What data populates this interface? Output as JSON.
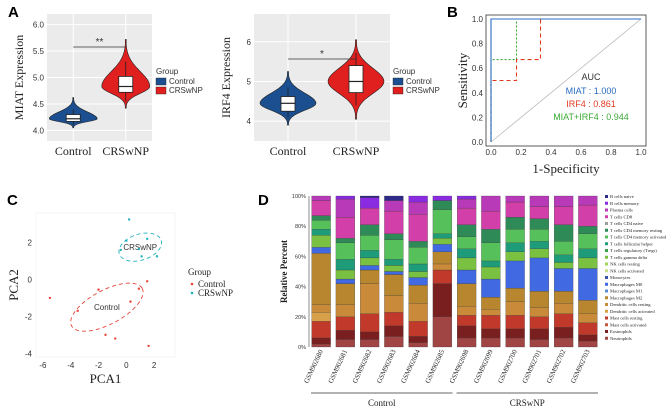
{
  "panels": {
    "a": "A",
    "b": "B",
    "c": "C",
    "d": "D"
  },
  "chart_data": [
    {
      "id": "A1",
      "type": "violin",
      "ylabel": "MIAT Expression",
      "categories": [
        "Control",
        "CRSwNP"
      ],
      "ylim": [
        3.8,
        6.2
      ],
      "yticks": [
        "4.0",
        "4.5",
        "5.0",
        "5.5",
        "6.0"
      ],
      "significance": "**",
      "box": [
        {
          "group": "Control",
          "q1": 4.17,
          "median": 4.22,
          "q3": 4.3,
          "whisker_low": 4.1,
          "whisker_high": 4.4,
          "min": 4.05,
          "max": 4.62
        },
        {
          "group": "CRSwNP",
          "q1": 4.72,
          "median": 4.83,
          "q3": 5.02,
          "whisker_low": 4.55,
          "whisker_high": 5.3,
          "min": 4.42,
          "max": 5.72
        }
      ],
      "legend": {
        "title": "Group",
        "items": [
          {
            "label": "Control",
            "color": "#1c4f8f"
          },
          {
            "label": "CRSwNP",
            "color": "#e01f1f"
          }
        ]
      }
    },
    {
      "id": "A2",
      "type": "violin",
      "ylabel": "IRF4 Expression",
      "categories": [
        "Control",
        "CRSwNP"
      ],
      "ylim": [
        3.5,
        6.7
      ],
      "yticks": [
        "4",
        "5",
        "6"
      ],
      "significance": "*",
      "box": [
        {
          "group": "Control",
          "q1": 4.25,
          "median": 4.45,
          "q3": 4.62,
          "whisker_low": 4.1,
          "whisker_high": 4.85,
          "min": 3.9,
          "max": 5.25
        },
        {
          "group": "CRSwNP",
          "q1": 4.72,
          "median": 5.0,
          "q3": 5.4,
          "whisker_low": 4.4,
          "whisker_high": 5.72,
          "min": 4.05,
          "max": 6.05
        }
      ],
      "legend": {
        "title": "Group",
        "items": [
          {
            "label": "Control",
            "color": "#1c4f8f"
          },
          {
            "label": "CRSwNP",
            "color": "#e01f1f"
          }
        ]
      }
    },
    {
      "id": "B",
      "type": "line",
      "xlabel": "1-Specificity",
      "ylabel": "Sensitivity",
      "xlim": [
        0,
        1
      ],
      "ylim": [
        0,
        1
      ],
      "ticks": [
        "0.0",
        "0.2",
        "0.4",
        "0.6",
        "0.8",
        "1.0"
      ],
      "series": [
        {
          "name": "MIAT",
          "color": "#2a6cc0",
          "dash": "",
          "points": [
            [
              0,
              0
            ],
            [
              0,
              1
            ],
            [
              1,
              1
            ]
          ]
        },
        {
          "name": "IRF4",
          "color": "#e03a1f",
          "dash": "4,3",
          "points": [
            [
              0,
              0
            ],
            [
              0,
              0.5
            ],
            [
              0.17,
              0.5
            ],
            [
              0.17,
              0.67
            ],
            [
              0.33,
              0.67
            ],
            [
              0.33,
              1
            ],
            [
              1,
              1
            ]
          ]
        },
        {
          "name": "MIAT+IRF4",
          "color": "#3aaa35",
          "dash": "2,2",
          "points": [
            [
              0,
              0
            ],
            [
              0,
              0.67
            ],
            [
              0.17,
              0.67
            ],
            [
              0.17,
              1
            ],
            [
              1,
              1
            ]
          ]
        }
      ],
      "diagonal": true,
      "legend": {
        "title": "AUC",
        "items": [
          {
            "text": "MIAT : 1.000",
            "color": "#2a6cc0"
          },
          {
            "text": "IRF4 : 0.861",
            "color": "#e03a1f"
          },
          {
            "text": "MIAT+IRF4 : 0.944",
            "color": "#3aaa35"
          }
        ]
      }
    },
    {
      "id": "C",
      "type": "scatter",
      "xlabel": "PCA1",
      "ylabel": "PCA2",
      "xlim": [
        -6.5,
        3.5
      ],
      "ylim": [
        -4.2,
        3.6
      ],
      "xticks": [
        -6,
        -4,
        -2,
        0,
        2
      ],
      "yticks": [
        -4,
        -2,
        0,
        2
      ],
      "series": [
        {
          "name": "Control",
          "color": "#e8453c",
          "points": [
            [
              -5.5,
              -1.0
            ],
            [
              -3.5,
              -1.7
            ],
            [
              -2.0,
              -0.55
            ],
            [
              -1.5,
              -3.0
            ],
            [
              -0.8,
              -3.2
            ],
            [
              0.3,
              -1.2
            ],
            [
              0.9,
              -0.5
            ],
            [
              1.6,
              -3.6
            ],
            [
              1.5,
              -0.1
            ]
          ]
        },
        {
          "name": "CRSwNP",
          "color": "#20b2c0",
          "points": [
            [
              0.2,
              3.25
            ],
            [
              -0.4,
              1.6
            ],
            [
              0.0,
              2.1
            ],
            [
              0.9,
              1.65
            ],
            [
              1.1,
              1.25
            ],
            [
              2.2,
              1.25
            ],
            [
              1.5,
              2.2
            ]
          ]
        }
      ],
      "ellipse_labels": [
        "CRSwNP",
        "Control"
      ],
      "legend": {
        "title": "Group",
        "items": [
          {
            "label": "Control",
            "color": "#e8453c"
          },
          {
            "label": "CRSwNP",
            "color": "#20b2c0"
          }
        ]
      }
    },
    {
      "id": "D",
      "type": "bar",
      "stacked": true,
      "ylabel": "Relative Percent",
      "yticks": [
        "0%",
        "20%",
        "40%",
        "60%",
        "80%",
        "100%"
      ],
      "ylim": [
        0,
        100
      ],
      "categories": [
        "GSM902680",
        "GSM902681",
        "GSM902682",
        "GSM902683",
        "GSM902684",
        "GSM902685",
        "GSM902698",
        "GSM902699",
        "GSM902700",
        "GSM902701",
        "GSM902702",
        "GSM902703"
      ],
      "groups": [
        {
          "label": "Control",
          "from": 0,
          "to": 5
        },
        {
          "label": "CRSwNP",
          "from": 6,
          "to": 11
        }
      ],
      "cell_types": [
        "B cells naive",
        "B cells memory",
        "Plasma cells",
        "T cells CD8",
        "T cells CD4 naive",
        "T cells CD4 memory resting",
        "T cells CD4 memory activated",
        "T cells follicular helper",
        "T cells regulatory (Tregs)",
        "T cells gamma delta",
        "NK cells resting",
        "NK cells activated",
        "Monocytes",
        "Macrophages M0",
        "Macrophages M1",
        "Macrophages M2",
        "Dendritic cells resting",
        "Dendritic cells activated",
        "Mast cells resting",
        "Mast cells activated",
        "Eosinophils",
        "Neutrophils"
      ],
      "colors": [
        "#2e2a8a",
        "#8a2be2",
        "#b83ab8",
        "#d23fa8",
        "#9e9e9e",
        "#2e8b57",
        "#56c15a",
        "#1e9c7a",
        "#3aa34a",
        "#7ac142",
        "#a2d45e",
        "#c7e08a",
        "#3a53a8",
        "#4169e1",
        "#5b8dd6",
        "#b8862e",
        "#c98a3a",
        "#d9a04a",
        "#c0392b",
        "#c4553f",
        "#7a1f1f",
        "#a04444"
      ],
      "values": [
        [
          0,
          0,
          3,
          10,
          0,
          3,
          6,
          4,
          0,
          8,
          0,
          0,
          0,
          4,
          0,
          34,
          5,
          6,
          11,
          0,
          4,
          2
        ],
        [
          0,
          2,
          12,
          14,
          0,
          3,
          11,
          7,
          0,
          6,
          0,
          0,
          0,
          3,
          0,
          14,
          8,
          0,
          9,
          0,
          6,
          5
        ],
        [
          1,
          7,
          0,
          11,
          0,
          7,
          10,
          5,
          0,
          5,
          0,
          0,
          0,
          3,
          0,
          9,
          20,
          0,
          12,
          0,
          5,
          5
        ],
        [
          3,
          0,
          7,
          15,
          0,
          4,
          13,
          4,
          0,
          4,
          0,
          0,
          0,
          2,
          0,
          14,
          11,
          0,
          9,
          0,
          7,
          7
        ],
        [
          0,
          4,
          8,
          18,
          0,
          4,
          11,
          5,
          0,
          4,
          0,
          0,
          0,
          5,
          0,
          12,
          12,
          0,
          10,
          0,
          4,
          3
        ],
        [
          0,
          3,
          0,
          0,
          0,
          6,
          16,
          3,
          0,
          4,
          0,
          0,
          0,
          5,
          0,
          8,
          4,
          0,
          9,
          0,
          22,
          20
        ],
        [
          0,
          2,
          6,
          11,
          0,
          8,
          8,
          6,
          0,
          8,
          0,
          0,
          0,
          9,
          0,
          15,
          6,
          0,
          7,
          0,
          8,
          6
        ],
        [
          0,
          0,
          10,
          12,
          0,
          9,
          12,
          4,
          0,
          8,
          0,
          0,
          0,
          12,
          0,
          8,
          4,
          0,
          9,
          0,
          6,
          6
        ],
        [
          0,
          0,
          4,
          10,
          0,
          8,
          9,
          6,
          0,
          6,
          0,
          0,
          0,
          18,
          0,
          9,
          9,
          0,
          9,
          0,
          6,
          6
        ],
        [
          0,
          0,
          7,
          8,
          0,
          7,
          8,
          5,
          0,
          6,
          0,
          0,
          0,
          22,
          0,
          11,
          6,
          0,
          8,
          0,
          7,
          5
        ],
        [
          0,
          0,
          7,
          12,
          0,
          11,
          9,
          5,
          0,
          4,
          0,
          0,
          0,
          15,
          0,
          8,
          7,
          0,
          9,
          0,
          7,
          6
        ],
        [
          0,
          0,
          6,
          14,
          0,
          5,
          10,
          6,
          0,
          7,
          0,
          0,
          0,
          21,
          0,
          9,
          6,
          0,
          8,
          0,
          4,
          4
        ]
      ]
    }
  ]
}
